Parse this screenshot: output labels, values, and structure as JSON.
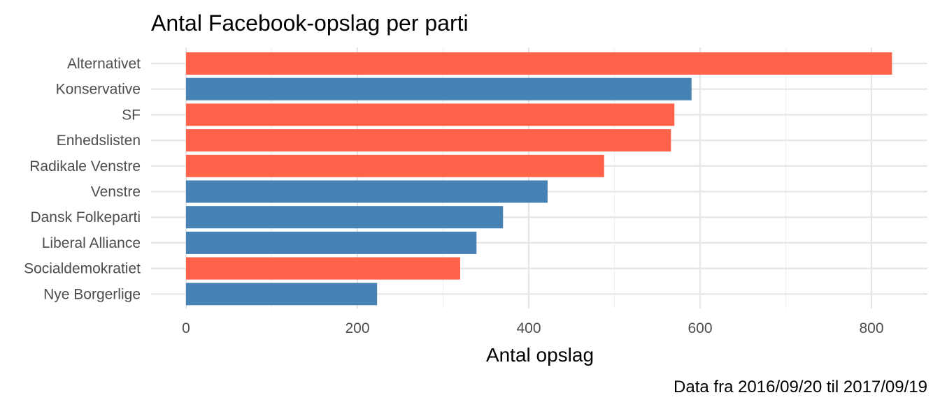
{
  "chart_data": {
    "type": "bar",
    "orientation": "horizontal",
    "title": "Antal Facebook-opslag per parti",
    "xlabel": "Antal opslag",
    "ylabel": "",
    "caption": "Data fra 2016/09/20 til 2017/09/19",
    "xlim": [
      0,
      850
    ],
    "xticks": [
      0,
      200,
      400,
      600,
      800
    ],
    "grid": true,
    "legend": "none",
    "colors": {
      "red_bloc": "#FF634A",
      "blue_bloc": "#4682B4"
    },
    "categories": [
      "Alternativet",
      "Konservative",
      "SF",
      "Enhedslisten",
      "Radikale Venstre",
      "Venstre",
      "Dansk Folkeparti",
      "Liberal Alliance",
      "Socialdemokratiet",
      "Nye Borgerlige"
    ],
    "values": [
      824,
      590,
      570,
      566,
      488,
      422,
      370,
      339,
      320,
      223
    ],
    "bar_colors": [
      "#FF634A",
      "#4682B4",
      "#FF634A",
      "#FF634A",
      "#FF634A",
      "#4682B4",
      "#4682B4",
      "#4682B4",
      "#FF634A",
      "#4682B4"
    ]
  }
}
